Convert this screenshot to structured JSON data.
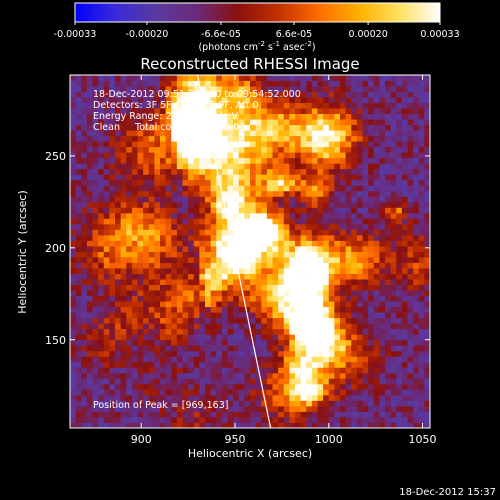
{
  "colorbar": {
    "tick_labels": [
      "-0.00033",
      "-0.00020",
      "-6.6e-05",
      "6.6e-05",
      "0.00020",
      "0.00033"
    ],
    "tick_values": [
      -0.00033,
      -0.0002,
      -6.6e-05,
      6.6e-05,
      0.0002,
      0.00033
    ],
    "units_main": "(photons cm",
    "units_sup1": "-2",
    "units_mid": " s",
    "units_sup2": "-1",
    "units_mid2": " asec",
    "units_sup3": "-2",
    "units_end": ")",
    "range": [
      -0.00033,
      0.00033
    ],
    "colormap_stops": [
      "#0000ff",
      "#3a2bd9",
      "#5a3aa0",
      "#6a2a7a",
      "#8a1010",
      "#c03000",
      "#ff6a00",
      "#ffb000",
      "#ffe060",
      "#ffffff"
    ]
  },
  "chart_data": {
    "type": "heatmap",
    "title": "Reconstructed RHESSI Image",
    "xlabel": "Heliocentric X (arcsec)",
    "ylabel": "Heliocentric Y (arcsec)",
    "xlim": [
      862,
      1054
    ],
    "ylim": [
      102,
      294
    ],
    "x_ticks": [
      900,
      950,
      1000,
      1050
    ],
    "y_ticks": [
      150,
      200,
      250
    ],
    "limb_line": [
      [
        930,
        294
      ],
      [
        969,
        102
      ]
    ],
    "peak_position": [
      969,
      163
    ],
    "info_lines": [
      "18-Dec-2012 09:51:32.000 to 09:54:52.000",
      "Detectors: 3F 5F 6F 7F 8F 9F, Att 0",
      "Energy Range: 25.0 - 50.0 keV",
      "Clean     Total counts: 3.28E+03"
    ],
    "peak_label": "Position of Peak = [969,163]"
  },
  "footer": {
    "timestamp": "18-Dec-2012 15:37"
  }
}
